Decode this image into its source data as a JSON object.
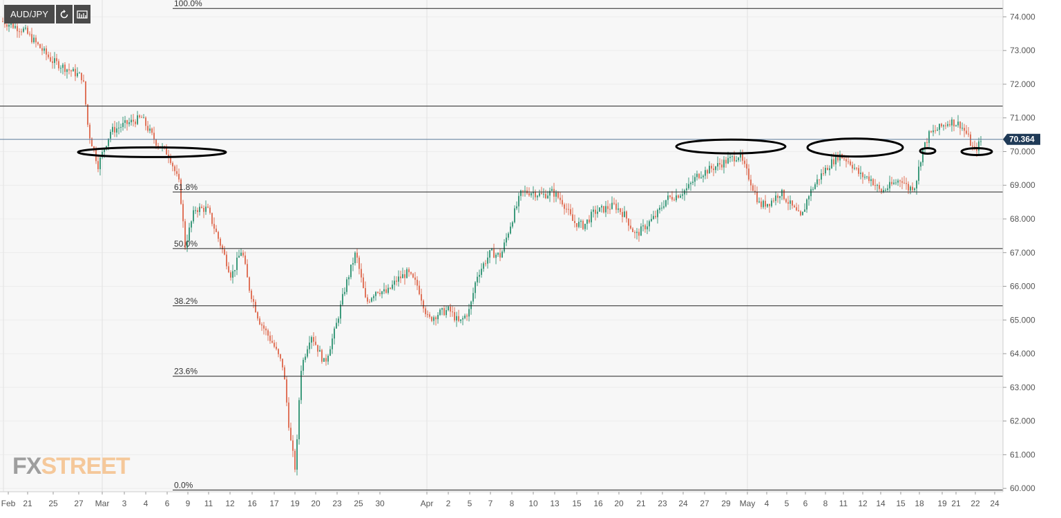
{
  "toolbar": {
    "symbol": "AUD/JPY",
    "refresh_icon": "refresh-icon",
    "settings_icon": "chart-settings-icon"
  },
  "logo": {
    "part1": "FX",
    "part2": "STREET"
  },
  "colors": {
    "up": "#3d9a7c",
    "down": "#e0735a",
    "grid": "#ececec",
    "line": "#222222",
    "price_tag": "#1f3a57",
    "background": "#f7f7f7"
  },
  "chart_data": {
    "type": "candlestick",
    "title": "AUD/JPY",
    "ylim": [
      59.9,
      74.5
    ],
    "y_ticks": [
      "74.000",
      "73.000",
      "72.000",
      "71.000",
      "70.000",
      "69.000",
      "68.000",
      "67.000",
      "66.000",
      "65.000",
      "64.000",
      "63.000",
      "62.000",
      "61.000",
      "60.000"
    ],
    "x_labels": [
      "Feb",
      "21",
      "25",
      "27",
      "Mar",
      "3",
      "4",
      "6",
      "9",
      "11",
      "12",
      "16",
      "17",
      "19",
      "20",
      "23",
      "25",
      "30",
      "Apr",
      "2",
      "5",
      "7",
      "8",
      "10",
      "13",
      "15",
      "16",
      "20",
      "21",
      "23",
      "24",
      "27",
      "29",
      "May",
      "4",
      "5",
      "6",
      "8",
      "11",
      "12",
      "14",
      "15",
      "18",
      "19",
      "21",
      "22",
      "24"
    ],
    "current_price": "70.364",
    "fibonacci": [
      {
        "label": "100.0%",
        "value": 74.25
      },
      {
        "label": "61.8%",
        "value": 68.8
      },
      {
        "label": "50.0%",
        "value": 67.12
      },
      {
        "label": "38.2%",
        "value": 65.42
      },
      {
        "label": "23.6%",
        "value": 63.33
      },
      {
        "label": "0.0%",
        "value": 59.95
      }
    ],
    "horizontal_lines": [
      71.35
    ],
    "ellipses": [
      {
        "center_x_label": "4",
        "value": 69.98
      },
      {
        "center_x_label": "29",
        "value": 70.15
      },
      {
        "center_x_label": "11",
        "value": 70.12
      },
      {
        "center_x_label": "19",
        "value": 70.02
      },
      {
        "center_x_label": "22",
        "value": 70.0
      }
    ],
    "path_points": [
      [
        0,
        73.9
      ],
      [
        35,
        73.6
      ],
      [
        75,
        72.7
      ],
      [
        120,
        72.2
      ],
      [
        128,
        70.6
      ],
      [
        142,
        69.6
      ],
      [
        160,
        70.6
      ],
      [
        180,
        70.8
      ],
      [
        205,
        71.0
      ],
      [
        225,
        70.3
      ],
      [
        245,
        69.9
      ],
      [
        260,
        69.0
      ],
      [
        268,
        67.2
      ],
      [
        282,
        68.3
      ],
      [
        300,
        68.3
      ],
      [
        320,
        67.2
      ],
      [
        335,
        66.3
      ],
      [
        350,
        67.1
      ],
      [
        360,
        66.0
      ],
      [
        375,
        65.0
      ],
      [
        395,
        64.3
      ],
      [
        410,
        63.6
      ],
      [
        420,
        61.5
      ],
      [
        428,
        60.5
      ],
      [
        435,
        63.5
      ],
      [
        450,
        64.6
      ],
      [
        470,
        63.7
      ],
      [
        485,
        64.7
      ],
      [
        500,
        66.0
      ],
      [
        515,
        67.0
      ],
      [
        530,
        65.5
      ],
      [
        545,
        65.9
      ],
      [
        560,
        65.8
      ],
      [
        575,
        66.2
      ],
      [
        590,
        66.4
      ],
      [
        605,
        66.0
      ],
      [
        620,
        65.0
      ],
      [
        635,
        65.2
      ],
      [
        650,
        65.3
      ],
      [
        665,
        64.9
      ],
      [
        680,
        65.3
      ],
      [
        690,
        66.3
      ],
      [
        710,
        67.0
      ],
      [
        725,
        66.9
      ],
      [
        740,
        67.9
      ],
      [
        755,
        68.8
      ],
      [
        770,
        68.8
      ],
      [
        785,
        68.7
      ],
      [
        800,
        68.8
      ],
      [
        815,
        68.5
      ],
      [
        830,
        67.9
      ],
      [
        845,
        67.8
      ],
      [
        860,
        68.2
      ],
      [
        875,
        68.3
      ],
      [
        890,
        68.4
      ],
      [
        905,
        68.1
      ],
      [
        920,
        67.5
      ],
      [
        935,
        67.8
      ],
      [
        950,
        68.1
      ],
      [
        965,
        68.6
      ],
      [
        980,
        68.7
      ],
      [
        995,
        68.9
      ],
      [
        1010,
        69.3
      ],
      [
        1030,
        69.5
      ],
      [
        1050,
        69.7
      ],
      [
        1070,
        69.9
      ],
      [
        1085,
        69.2
      ],
      [
        1100,
        68.4
      ],
      [
        1115,
        68.5
      ],
      [
        1130,
        68.8
      ],
      [
        1145,
        68.4
      ],
      [
        1160,
        68.0
      ],
      [
        1170,
        68.7
      ],
      [
        1185,
        69.2
      ],
      [
        1200,
        69.6
      ],
      [
        1215,
        69.9
      ],
      [
        1230,
        69.7
      ],
      [
        1245,
        69.3
      ],
      [
        1260,
        69.2
      ],
      [
        1275,
        68.8
      ],
      [
        1290,
        69.0
      ],
      [
        1305,
        69.2
      ],
      [
        1315,
        68.9
      ],
      [
        1325,
        69.0
      ],
      [
        1335,
        70.0
      ],
      [
        1345,
        70.5
      ],
      [
        1360,
        70.7
      ],
      [
        1375,
        70.9
      ],
      [
        1390,
        70.8
      ],
      [
        1400,
        70.5
      ],
      [
        1410,
        70.0
      ],
      [
        1420,
        70.3
      ]
    ]
  }
}
